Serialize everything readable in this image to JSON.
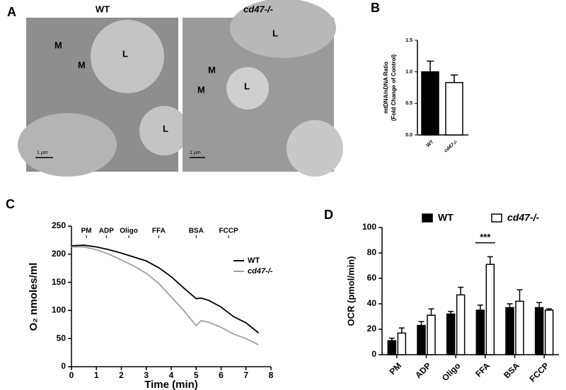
{
  "panel_labels": [
    "A",
    "B",
    "C",
    "D"
  ],
  "micrographs": [
    {
      "title": "WT",
      "labels": [
        "M",
        "M",
        "L",
        "L"
      ],
      "scale_bar": "1 µm"
    },
    {
      "title": "cd47-/-",
      "labels": [
        "L",
        "M",
        "M",
        "L"
      ],
      "scale_bar": "1 µm"
    }
  ],
  "chart_data": [
    {
      "type": "bar",
      "ylabel": [
        "mtDNA/nDNA Ratio",
        "(Fold Change of Control)"
      ],
      "categories": [
        "WT",
        "cd47-/-"
      ],
      "values": [
        1.0,
        0.83
      ],
      "errors": [
        0.17,
        0.12
      ],
      "colors": [
        "#000000",
        "#ffffff"
      ],
      "ylim": [
        0,
        1.5
      ],
      "yticks": [
        {
          "value": 0,
          "label": "0.0"
        },
        {
          "value": 0.5,
          "label": "0.5"
        },
        {
          "value": 1.0,
          "label": "1.0"
        },
        {
          "value": 1.5,
          "label": "1.5"
        }
      ]
    },
    {
      "type": "line",
      "xlabel": "Time (min)",
      "ylabel": "O₂ nmoles/ml",
      "x": [
        0,
        0.5,
        1,
        1.5,
        2,
        2.5,
        3,
        3.5,
        4,
        4.5,
        5,
        5.2,
        5.5,
        6,
        6.5,
        7,
        7.5
      ],
      "series": [
        {
          "name": "WT",
          "color": "#000000",
          "values": [
            215,
            216,
            213,
            208,
            202,
            195,
            188,
            176,
            160,
            140,
            121,
            122,
            118,
            106,
            89,
            78,
            60
          ]
        },
        {
          "name": "cd47-/-",
          "color": "#a0a0a0",
          "values": [
            213,
            213,
            208,
            200,
            190,
            179,
            166,
            148,
            124,
            100,
            73,
            82,
            79,
            70,
            58,
            50,
            39
          ]
        }
      ],
      "annotations": [
        {
          "text": "PM",
          "x": 0.6
        },
        {
          "text": "ADP",
          "x": 1.4
        },
        {
          "text": "Oligo",
          "x": 2.3
        },
        {
          "text": "FFA",
          "x": 3.5
        },
        {
          "text": "BSA",
          "x": 5.0
        },
        {
          "text": "FCCP",
          "x": 6.3
        }
      ],
      "xlim": [
        0,
        8
      ],
      "xticks": [
        0,
        1,
        2,
        3,
        4,
        5,
        6,
        7,
        8
      ],
      "ylim": [
        0,
        250
      ],
      "yticks": [
        0,
        50,
        100,
        150,
        200,
        250
      ]
    },
    {
      "type": "groupbar",
      "ylabel": "OCR (pmol/min)",
      "categories": [
        "PM",
        "ADP",
        "Oligo",
        "FFA",
        "BSA",
        "FCCP"
      ],
      "series": [
        {
          "name": "WT",
          "color": "#000000",
          "values": [
            11,
            23,
            32,
            35,
            37,
            37
          ],
          "errors": [
            2,
            3,
            2,
            4,
            3,
            4
          ]
        },
        {
          "name": "cd47-/-",
          "color": "#ffffff",
          "values": [
            17,
            31,
            47,
            71,
            42,
            35
          ],
          "errors": [
            4,
            5,
            6,
            6,
            9,
            1
          ]
        }
      ],
      "significance": {
        "text": "***",
        "category": "FFA",
        "y": 88
      },
      "ylim": [
        0,
        100
      ],
      "yticks": [
        0,
        20,
        40,
        60,
        80,
        100
      ]
    }
  ]
}
